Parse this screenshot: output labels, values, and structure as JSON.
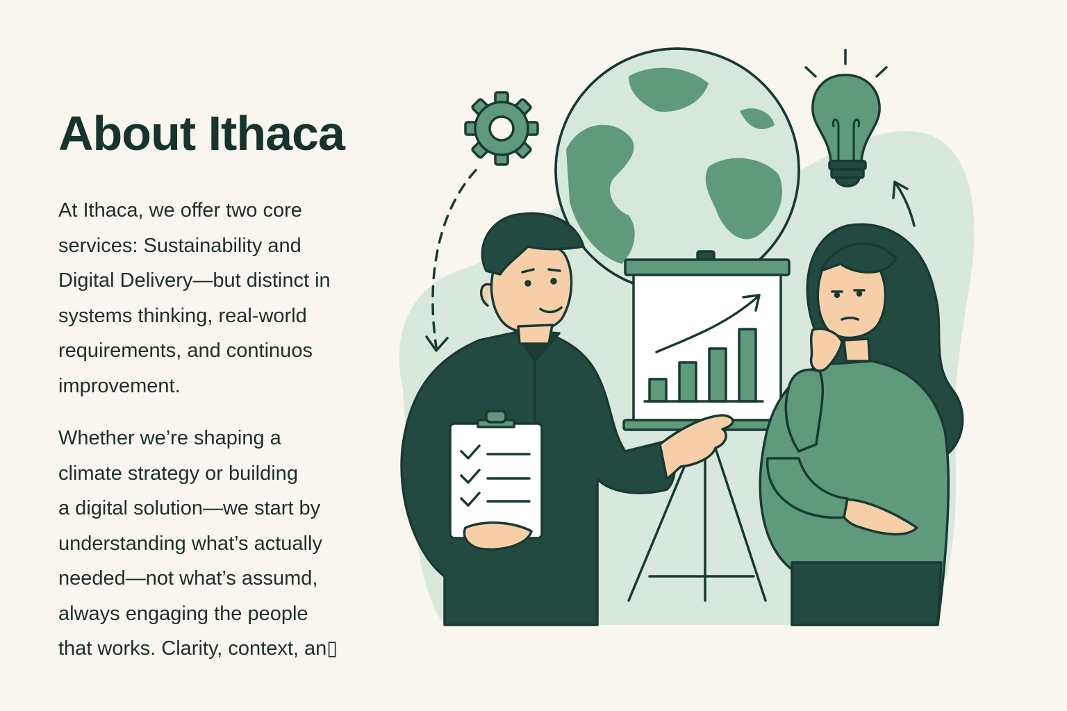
{
  "heading": "About Ithaca",
  "paragraph_1": [
    "At Ithaca, we offer two core",
    "services: Sustainability and",
    "Digital Delivery—but distinct in",
    "systems thinking, real-world",
    "requirements, and continuos",
    "improvement."
  ],
  "paragraph_2": [
    "Whether we’re shaping a",
    "climate strategy  or building",
    "a digital solution—we start by",
    "understanding what’s actually",
    "needed—not what’s assumd,",
    "always engaging the people",
    "that works. Clarity, context, an▯"
  ],
  "icons": [
    "gear-icon",
    "lightbulb-icon",
    "globe-icon",
    "clipboard-icon",
    "checkmark-icon",
    "bar-chart-icon",
    "trend-arrow-icon"
  ],
  "colors": {
    "background": "#f8f6ef",
    "ink": "#16332d",
    "dark_green": "#234a40",
    "mid_green": "#5e9a7b",
    "light_green": "#cfe3d6",
    "pale_green": "#e3efe6",
    "skin": "#f6cfa9"
  }
}
